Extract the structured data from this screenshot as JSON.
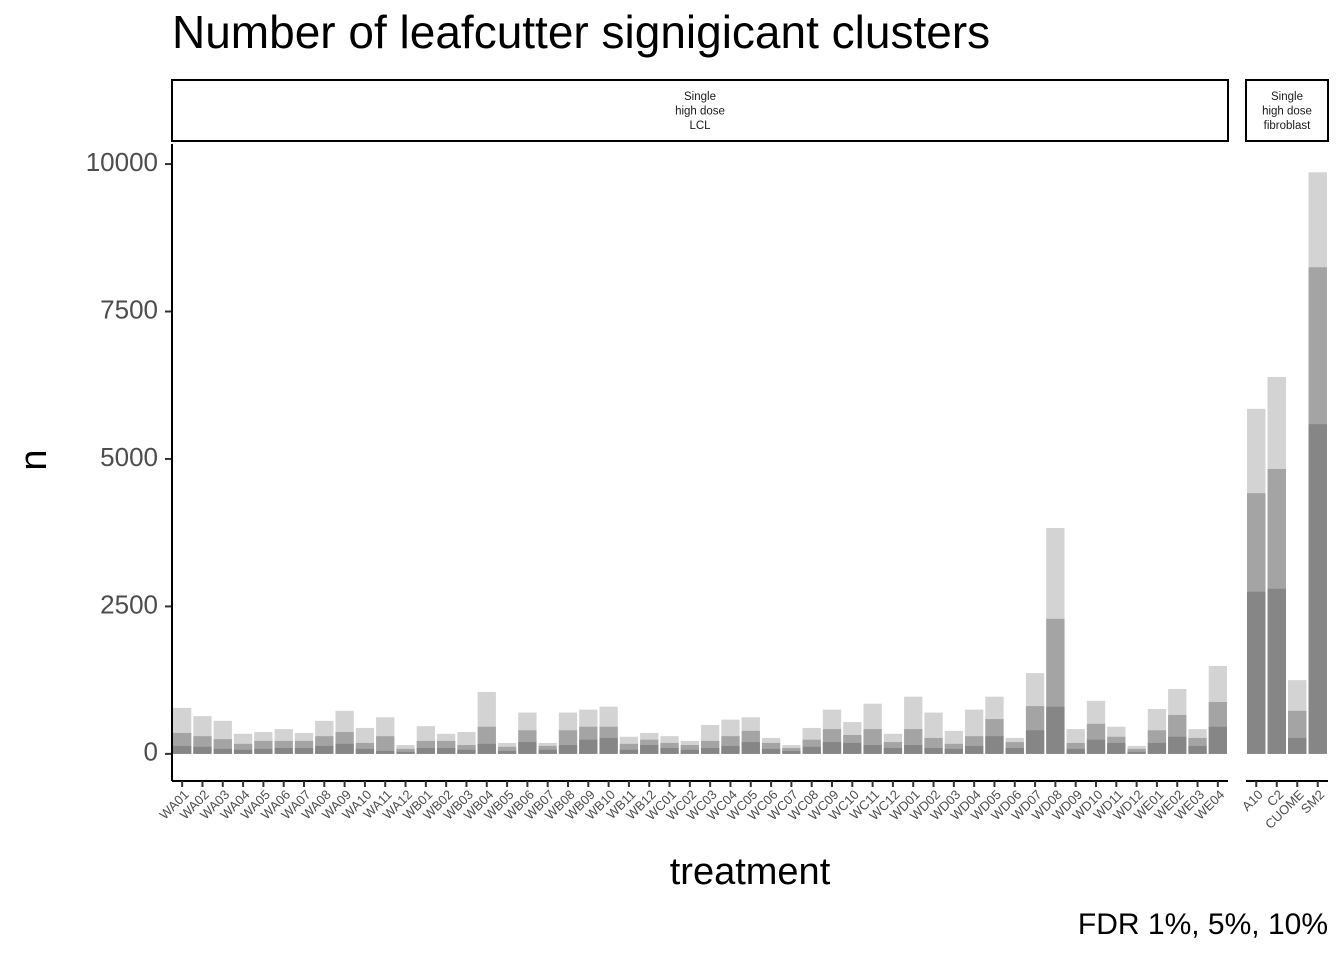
{
  "chart_data": {
    "type": "bar",
    "barmode": "overlay",
    "title": "Number of leafcutter signigicant clusters",
    "x_label": "treatment",
    "y_label": "n",
    "caption": "FDR 1%, 5%, 10%",
    "ylim": [
      -460,
      10340
    ],
    "yticks": [
      0,
      2500,
      5000,
      7500,
      10000
    ],
    "facets": [
      {
        "strip": [
          "Single",
          "high dose",
          "LCL"
        ],
        "categories": [
          "WA01",
          "WA02",
          "WA03",
          "WA04",
          "WA05",
          "WA06",
          "WA07",
          "WA08",
          "WA09",
          "WA10",
          "WA11",
          "WA12",
          "WB01",
          "WB02",
          "WB03",
          "WB04",
          "WB05",
          "WB06",
          "WB07",
          "WB08",
          "WB09",
          "WB10",
          "WB11",
          "WB12",
          "WC01",
          "WC02",
          "WC03",
          "WC04",
          "WC05",
          "WC06",
          "WC07",
          "WC08",
          "WC09",
          "WC10",
          "WC11",
          "WC12",
          "WD01",
          "WD02",
          "WD03",
          "WD04",
          "WD05",
          "WD06",
          "WD07",
          "WD08",
          "WD09",
          "WD10",
          "WD11",
          "WD12",
          "WE01",
          "WE02",
          "WE03",
          "WE04"
        ],
        "series": [
          {
            "color": "#d3d3d3",
            "values": [
              780,
              640,
              560,
              340,
              370,
              420,
              355,
              560,
              730,
              440,
              620,
              150,
              470,
              340,
              370,
              1050,
              185,
              700,
              185,
              700,
              750,
              800,
              290,
              355,
              300,
              220,
              490,
              580,
              620,
              270,
              150,
              440,
              750,
              540,
              850,
              340,
              970,
              700,
              390,
              750,
              970,
              270,
              1370,
              3830,
              420,
              900,
              460,
              135,
              760,
              1100,
              420,
              1490
            ]
          },
          {
            "color": "#a4a4a4",
            "values": [
              355,
              300,
              250,
              170,
              220,
              220,
              220,
              300,
              370,
              185,
              300,
              85,
              220,
              220,
              150,
              460,
              120,
              400,
              135,
              400,
              460,
              460,
              170,
              240,
              185,
              150,
              220,
              300,
              390,
              185,
              100,
              240,
              420,
              320,
              420,
              200,
              420,
              270,
              170,
              300,
              590,
              200,
              810,
              2290,
              185,
              510,
              290,
              85,
              400,
              660,
              270,
              880
            ]
          },
          {
            "color": "#868686",
            "values": [
              135,
              120,
              85,
              70,
              85,
              100,
              100,
              135,
              170,
              85,
              50,
              35,
              100,
              100,
              70,
              170,
              50,
              200,
              70,
              150,
              240,
              270,
              70,
              150,
              100,
              70,
              100,
              135,
              200,
              85,
              50,
              120,
              200,
              185,
              150,
              100,
              150,
              100,
              85,
              135,
              300,
              100,
              400,
              800,
              85,
              240,
              185,
              35,
              185,
              290,
              135,
              460
            ]
          }
        ]
      },
      {
        "strip": [
          "Single",
          "high dose",
          "fibroblast"
        ],
        "categories": [
          "A10",
          "C2",
          "CUOME",
          "SM2"
        ],
        "series": [
          {
            "color": "#d3d3d3",
            "values": [
              5850,
              6390,
              1250,
              9860
            ]
          },
          {
            "color": "#a4a4a4",
            "values": [
              4420,
              4830,
              730,
              8250
            ]
          },
          {
            "color": "#868686",
            "values": [
              2750,
              2800,
              270,
              5590
            ]
          }
        ]
      }
    ]
  }
}
